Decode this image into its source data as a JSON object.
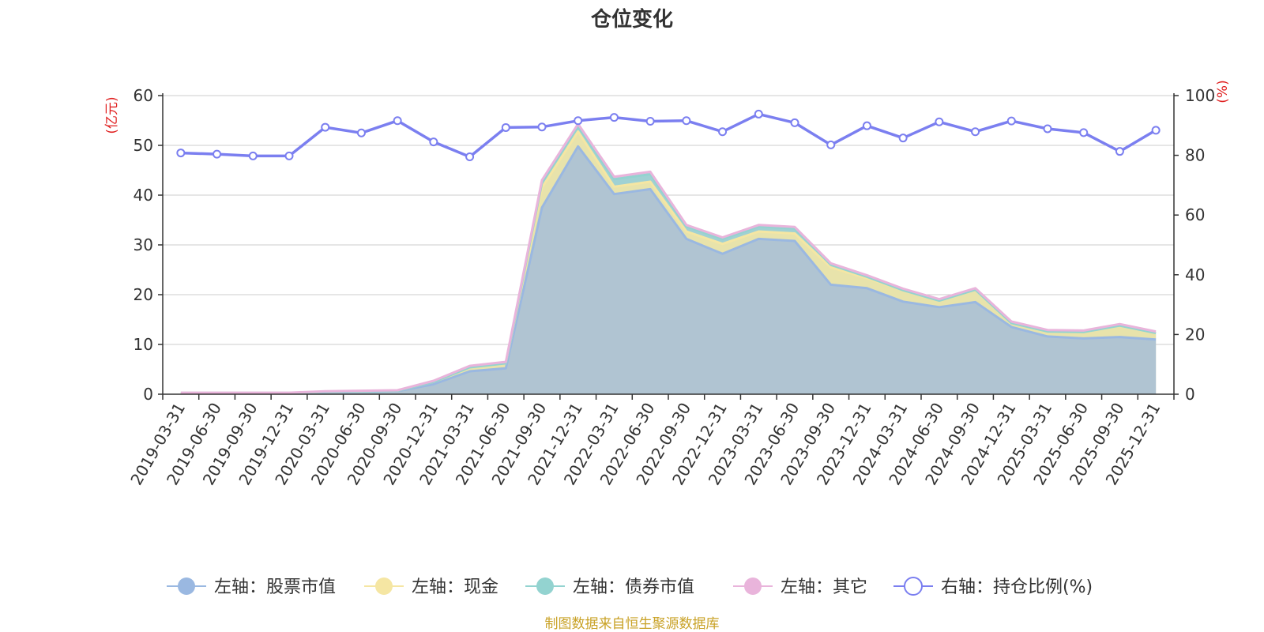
{
  "colors": {
    "stock": "#9ab8e1",
    "cash": "#f5e6a3",
    "bond": "#93d3d0",
    "other": "#e9b4db",
    "ratio": "#7b7ff0",
    "unit": "#e02020",
    "source": "#c9a227",
    "grid": "#cccccc",
    "axis": "#333333"
  },
  "chart_data": {
    "type": "area",
    "title": "仓位变化",
    "left_unit": "(亿元)",
    "right_unit": "(%)",
    "source": "制图数据来自恒生聚源数据库",
    "categories": [
      "2019-03-31",
      "2019-06-30",
      "2019-09-30",
      "2019-12-31",
      "2020-03-31",
      "2020-06-30",
      "2020-09-30",
      "2020-12-31",
      "2021-03-31",
      "2021-06-30",
      "2021-09-30",
      "2021-12-31",
      "2022-03-31",
      "2022-06-30",
      "2022-09-30",
      "2022-12-31",
      "2023-03-31",
      "2023-06-30",
      "2023-09-30",
      "2023-12-31",
      "2024-03-31",
      "2024-06-30",
      "2024-09-30",
      "2024-12-31",
      "2025-03-31",
      "2025-06-30",
      "2025-09-30",
      "2025-12-31"
    ],
    "left_axis": {
      "min": 0,
      "max": 60,
      "ticks": [
        "0",
        "10",
        "20",
        "30",
        "40",
        "50",
        "60"
      ]
    },
    "right_axis": {
      "min": 0,
      "max": 100,
      "ticks": [
        "0",
        "20",
        "40",
        "60",
        "80",
        "100"
      ]
    },
    "legend": [
      "左轴：股票市值",
      "左轴：现金",
      "左轴：债券市值",
      "左轴：其它",
      "右轴：持仓比例(%)"
    ],
    "series": [
      {
        "name": "左轴：股票市值",
        "axis": "left",
        "stacked": true,
        "values": [
          0.2,
          0.2,
          0.2,
          0.2,
          0.4,
          0.5,
          0.6,
          2.0,
          4.6,
          5.2,
          37.5,
          49.8,
          40.2,
          41.2,
          31.2,
          28.2,
          31.2,
          30.8,
          22.0,
          21.3,
          18.6,
          17.5,
          18.5,
          13.5,
          11.6,
          11.2,
          11.5,
          11.0
        ]
      },
      {
        "name": "左轴：现金",
        "axis": "left",
        "stacked": true,
        "values": [
          0.05,
          0.05,
          0.05,
          0.05,
          0.1,
          0.1,
          0.1,
          0.5,
          0.8,
          1.0,
          4.0,
          3.0,
          1.5,
          1.5,
          1.5,
          2.0,
          1.5,
          1.5,
          3.5,
          2.0,
          2.3,
          1.3,
          2.5,
          0.8,
          1.0,
          1.3,
          2.3,
          1.3
        ]
      },
      {
        "name": "左轴：债券市值",
        "axis": "left",
        "stacked": true,
        "values": [
          0,
          0,
          0,
          0,
          0,
          0,
          0,
          0,
          0,
          0,
          1.0,
          1.0,
          1.5,
          1.5,
          1.0,
          1.0,
          1.0,
          1.0,
          0.5,
          0.3,
          0,
          0,
          0,
          0,
          0,
          0,
          0,
          0
        ]
      },
      {
        "name": "左轴：其它",
        "axis": "left",
        "stacked": true,
        "values": [
          0.05,
          0.05,
          0.05,
          0.05,
          0.1,
          0.1,
          0.1,
          0.2,
          0.3,
          0.3,
          0.5,
          0.5,
          0.5,
          0.5,
          0.3,
          0.3,
          0.3,
          0.3,
          0.3,
          0.3,
          0.3,
          0.3,
          0.3,
          0.3,
          0.3,
          0.3,
          0.3,
          0.3
        ]
      },
      {
        "name": "右轴：持仓比例(%)",
        "axis": "right",
        "stacked": false,
        "values": [
          80.8,
          80.4,
          79.8,
          79.8,
          89.4,
          87.5,
          91.6,
          84.5,
          79.5,
          89.3,
          89.5,
          91.6,
          92.7,
          91.4,
          91.6,
          87.9,
          93.8,
          90.9,
          83.5,
          89.9,
          85.8,
          91.2,
          87.9,
          91.5,
          88.9,
          87.6,
          81.3,
          88.4
        ]
      }
    ]
  }
}
